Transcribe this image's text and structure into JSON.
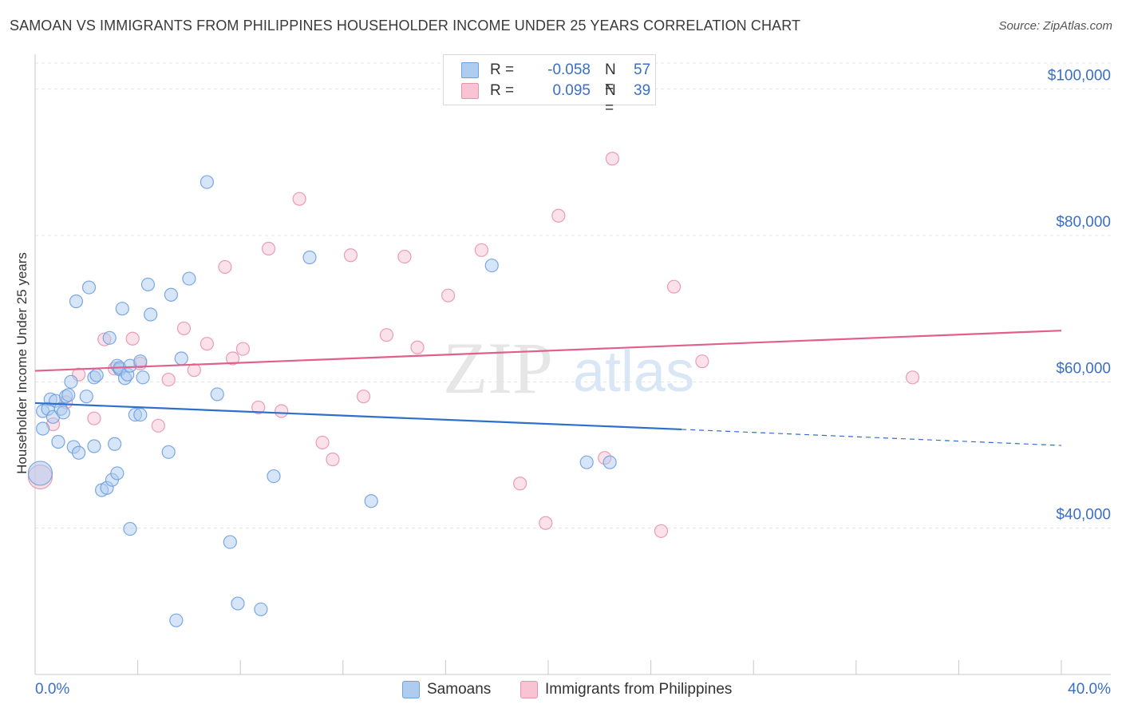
{
  "title": "SAMOAN VS IMMIGRANTS FROM PHILIPPINES HOUSEHOLDER INCOME UNDER 25 YEARS CORRELATION CHART",
  "source": "Source: ZipAtlas.com",
  "watermark": {
    "zip": "ZIP",
    "atlas": "atlas"
  },
  "legend_stats": [
    {
      "r_label": "R =",
      "r_value": "-0.058",
      "n_label": "N =",
      "n_value": "57",
      "color": "#aecbf0",
      "border": "#6e9fe0"
    },
    {
      "r_label": "R =",
      "r_value": "0.095",
      "n_label": "N =",
      "n_value": "39",
      "color": "#f8c4d4",
      "border": "#e892ad"
    }
  ],
  "chart_data": {
    "type": "scatter",
    "title": "SAMOAN VS IMMIGRANTS FROM PHILIPPINES HOUSEHOLDER INCOME UNDER 25 YEARS CORRELATION CHART",
    "xlabel": "",
    "ylabel": "Householder Income Under 25 years",
    "xlim": [
      0,
      40
    ],
    "ylim": [
      20000,
      104000
    ],
    "x_tick_labels": [
      "0.0%",
      "40.0%"
    ],
    "y_ticks": [
      40000,
      60000,
      80000,
      100000
    ],
    "y_tick_labels": [
      "$40,000",
      "$60,000",
      "$80,000",
      "$100,000"
    ],
    "grid": true,
    "legend_placement": "bottom",
    "series": [
      {
        "name": "Samoans",
        "color": "#6e9fe0",
        "fill": "#aecbf0",
        "trend": {
          "x0": 0,
          "y0": 57100,
          "x1": 25.2,
          "y1": 53500,
          "dash_to_x": 40,
          "dash_to_y": 51300,
          "color": "#2f6fcc"
        },
        "points": [
          [
            0.2,
            47500
          ],
          [
            0.3,
            53600
          ],
          [
            0.3,
            56000
          ],
          [
            0.5,
            56300
          ],
          [
            0.6,
            57600
          ],
          [
            0.7,
            55200
          ],
          [
            0.8,
            57400
          ],
          [
            0.9,
            51800
          ],
          [
            1.0,
            56300
          ],
          [
            1.1,
            55800
          ],
          [
            1.2,
            58000
          ],
          [
            1.3,
            58200
          ],
          [
            1.4,
            60000
          ],
          [
            1.5,
            51100
          ],
          [
            1.6,
            71000
          ],
          [
            1.7,
            50300
          ],
          [
            2.0,
            58000
          ],
          [
            2.1,
            72900
          ],
          [
            2.3,
            60600
          ],
          [
            2.3,
            51200
          ],
          [
            2.4,
            60900
          ],
          [
            2.6,
            45200
          ],
          [
            2.8,
            45500
          ],
          [
            2.9,
            66000
          ],
          [
            3.0,
            46600
          ],
          [
            3.1,
            51500
          ],
          [
            3.2,
            47500
          ],
          [
            3.2,
            62200
          ],
          [
            3.3,
            61700
          ],
          [
            3.3,
            61900
          ],
          [
            3.4,
            70000
          ],
          [
            3.5,
            60500
          ],
          [
            3.6,
            61000
          ],
          [
            3.7,
            39900
          ],
          [
            3.7,
            62200
          ],
          [
            3.9,
            55500
          ],
          [
            4.1,
            55500
          ],
          [
            4.1,
            62800
          ],
          [
            4.2,
            60600
          ],
          [
            4.4,
            73300
          ],
          [
            4.5,
            69200
          ],
          [
            5.2,
            50400
          ],
          [
            5.3,
            71900
          ],
          [
            5.5,
            27400
          ],
          [
            5.7,
            63200
          ],
          [
            6.0,
            74100
          ],
          [
            6.7,
            87300
          ],
          [
            7.1,
            58300
          ],
          [
            7.6,
            38100
          ],
          [
            7.9,
            29700
          ],
          [
            8.8,
            28900
          ],
          [
            9.3,
            47100
          ],
          [
            10.7,
            77000
          ],
          [
            13.1,
            43700
          ],
          [
            17.8,
            75900
          ],
          [
            21.5,
            49000
          ],
          [
            22.4,
            49000
          ]
        ]
      },
      {
        "name": "Immigrants from Philippines",
        "color": "#e892ad",
        "fill": "#f8c4d4",
        "trend": {
          "x0": 0,
          "y0": 61500,
          "x1": 40,
          "y1": 67000,
          "color": "#e0608a"
        },
        "points": [
          [
            0.2,
            47000
          ],
          [
            0.7,
            54200
          ],
          [
            1.2,
            57200
          ],
          [
            1.7,
            61000
          ],
          [
            2.3,
            55000
          ],
          [
            2.7,
            65800
          ],
          [
            3.1,
            61800
          ],
          [
            3.8,
            65900
          ],
          [
            4.1,
            62500
          ],
          [
            4.8,
            54000
          ],
          [
            5.2,
            60300
          ],
          [
            5.8,
            67300
          ],
          [
            6.2,
            61600
          ],
          [
            6.7,
            65200
          ],
          [
            7.4,
            75700
          ],
          [
            7.7,
            63200
          ],
          [
            8.1,
            64500
          ],
          [
            8.7,
            56500
          ],
          [
            9.1,
            78200
          ],
          [
            9.6,
            56000
          ],
          [
            10.3,
            85000
          ],
          [
            11.2,
            51700
          ],
          [
            11.6,
            49400
          ],
          [
            12.3,
            77300
          ],
          [
            12.8,
            58000
          ],
          [
            13.7,
            66400
          ],
          [
            14.4,
            77100
          ],
          [
            14.9,
            64700
          ],
          [
            16.1,
            71800
          ],
          [
            17.4,
            78000
          ],
          [
            18.9,
            46100
          ],
          [
            19.9,
            40700
          ],
          [
            20.4,
            82700
          ],
          [
            22.2,
            49600
          ],
          [
            22.5,
            90500
          ],
          [
            24.4,
            39600
          ],
          [
            24.9,
            73000
          ],
          [
            26.0,
            62800
          ],
          [
            34.2,
            60600
          ]
        ]
      }
    ]
  }
}
